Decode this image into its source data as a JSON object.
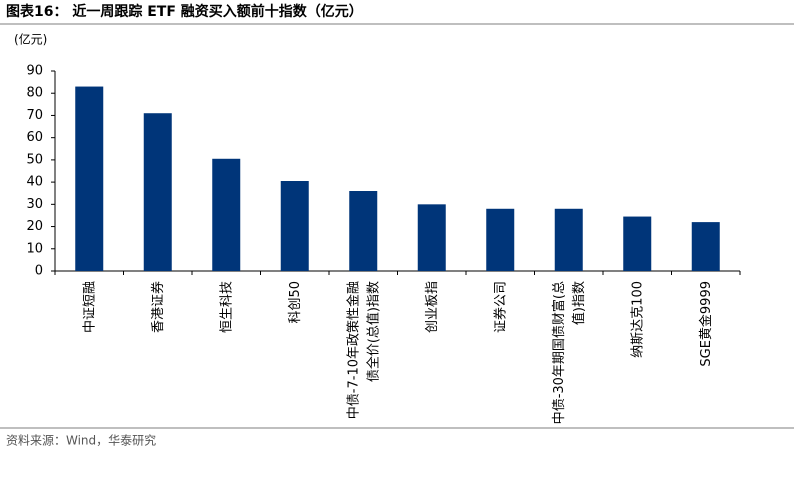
{
  "chart_data": {
    "type": "bar",
    "title": "图表16：  近一周跟踪 ETF 融资买入额前十指数（亿元）",
    "y_label": "(亿元)",
    "source": "资料来源：Wind，华泰研究",
    "categories": [
      "中证短融",
      "香港证券",
      "恒生科技",
      "科创50",
      "中债-7-10年政策性金融债全价(总值)指数",
      "创业板指",
      "证券公司",
      "中债-30年期国债财富(总值)指数",
      "纳斯达克100",
      "SGE黄金9999"
    ],
    "values": [
      83,
      71,
      50.5,
      40.5,
      36,
      30,
      28,
      28,
      24.5,
      22
    ],
    "color": "#003579",
    "ylim": [
      0,
      90
    ],
    "yticks": [
      0,
      10,
      20,
      30,
      40,
      50,
      60,
      70,
      80,
      90
    ]
  }
}
